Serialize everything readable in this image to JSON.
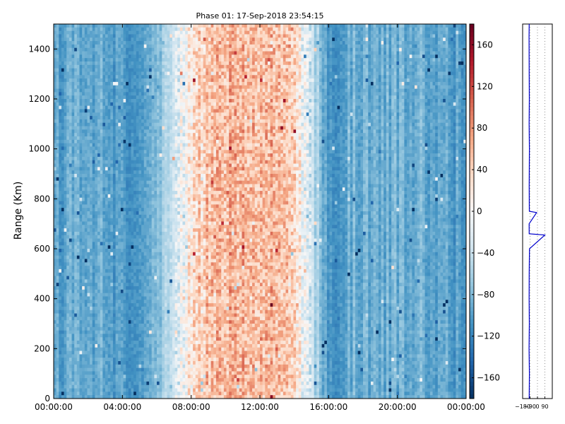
{
  "chart_data": {
    "type": "heatmap",
    "title": "Phase 01: 17-Sep-2018 23:54:15",
    "ylabel": "Range (Km)",
    "xlabel": "",
    "x_range": [
      "00:00:00",
      "24:00:00"
    ],
    "ylim": [
      0,
      1500
    ],
    "x_ticks": [
      "00:00:00",
      "04:00:00",
      "08:00:00",
      "12:00:00",
      "16:00:00",
      "20:00:00",
      "00:00:00"
    ],
    "y_ticks": [
      "0",
      "200",
      "400",
      "600",
      "800",
      "1000",
      "1200",
      "1400"
    ],
    "colorbar": {
      "range": [
        -180,
        180
      ],
      "ticks": [
        "160",
        "120",
        "80",
        "40",
        "0",
        "−40",
        "−80",
        "−120",
        "−160"
      ],
      "colormap": "RdBu_r"
    },
    "time_profile": [
      {
        "hour": 0,
        "phase": -100
      },
      {
        "hour": 1,
        "phase": -95
      },
      {
        "hour": 2,
        "phase": -90
      },
      {
        "hour": 3,
        "phase": -95
      },
      {
        "hour": 4,
        "phase": -100
      },
      {
        "hour": 5,
        "phase": -105
      },
      {
        "hour": 6,
        "phase": -80
      },
      {
        "hour": 7,
        "phase": -30
      },
      {
        "hour": 8,
        "phase": 20
      },
      {
        "hour": 9,
        "phase": 50
      },
      {
        "hour": 10,
        "phase": 60
      },
      {
        "hour": 11,
        "phase": 65
      },
      {
        "hour": 12,
        "phase": 60
      },
      {
        "hour": 13,
        "phase": 55
      },
      {
        "hour": 14,
        "phase": 30
      },
      {
        "hour": 15,
        "phase": -40
      },
      {
        "hour": 16,
        "phase": -110
      },
      {
        "hour": 17,
        "phase": -90
      },
      {
        "hour": 18,
        "phase": -85
      },
      {
        "hour": 19,
        "phase": -90
      },
      {
        "hour": 20,
        "phase": -85
      },
      {
        "hour": 21,
        "phase": -85
      },
      {
        "hour": 22,
        "phase": -95
      },
      {
        "hour": 23,
        "phase": -100
      },
      {
        "hour": 24,
        "phase": -100
      }
    ],
    "side_panel": {
      "x_ticks": [
        "−180",
        "−90",
        "0",
        "90"
      ],
      "xlim": [
        -180,
        180
      ],
      "profile": [
        {
          "range": 0,
          "phase": -100
        },
        {
          "range": 100,
          "phase": -98
        },
        {
          "range": 200,
          "phase": -102
        },
        {
          "range": 300,
          "phase": -99
        },
        {
          "range": 400,
          "phase": -101
        },
        {
          "range": 500,
          "phase": -100
        },
        {
          "range": 600,
          "phase": -97
        },
        {
          "range": 655,
          "phase": 90
        },
        {
          "range": 660,
          "phase": -100
        },
        {
          "range": 700,
          "phase": -101
        },
        {
          "range": 745,
          "phase": -10
        },
        {
          "range": 750,
          "phase": -99
        },
        {
          "range": 850,
          "phase": -100
        },
        {
          "range": 1000,
          "phase": -98
        },
        {
          "range": 1100,
          "phase": -101
        },
        {
          "range": 1200,
          "phase": -99
        },
        {
          "range": 1300,
          "phase": -100
        },
        {
          "range": 1450,
          "phase": -102
        },
        {
          "range": 1500,
          "phase": -100
        }
      ]
    }
  }
}
